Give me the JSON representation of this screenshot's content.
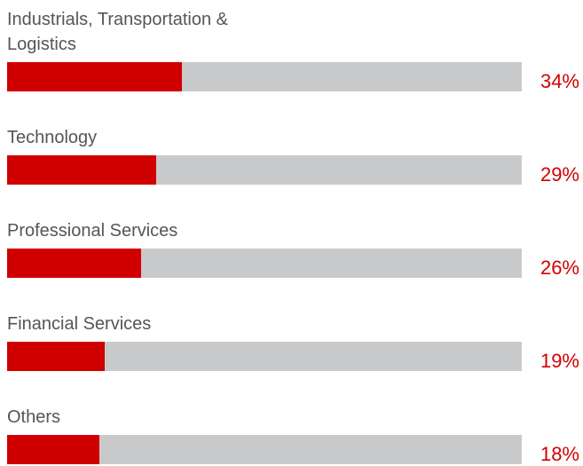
{
  "chart_data": {
    "type": "progress-bar",
    "categories": [
      "Industrials, Transportation & Logistics",
      "Technology",
      "Professional Services",
      "Financial Services",
      "Others"
    ],
    "values": [
      34,
      29,
      26,
      19,
      18
    ],
    "value_labels": [
      "34%",
      "29%",
      "26%",
      "19%",
      "18%"
    ],
    "xlim": [
      0,
      100
    ],
    "color": "#d10000",
    "track_color": "#c8c9cb"
  }
}
